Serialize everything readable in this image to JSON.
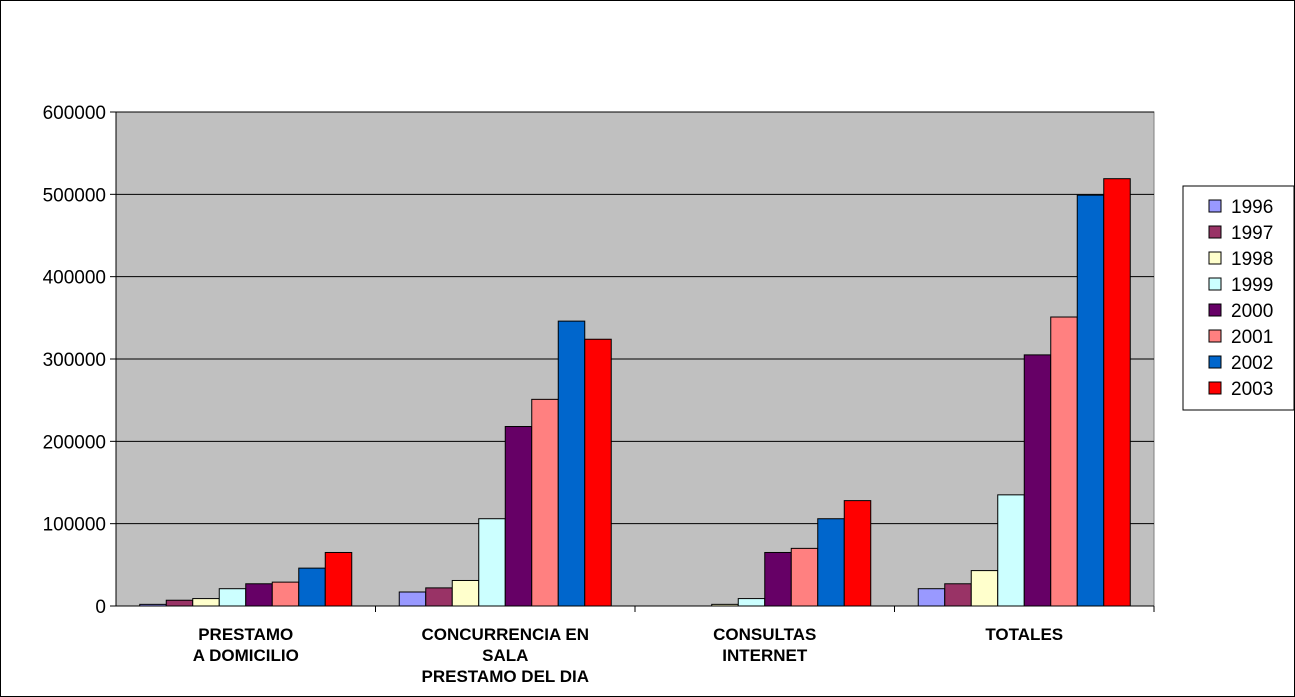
{
  "chart_data": {
    "type": "bar",
    "title": "",
    "xlabel": "",
    "ylabel": "",
    "ylim": [
      0,
      600000
    ],
    "yticks": [
      0,
      100000,
      200000,
      300000,
      400000,
      500000,
      600000
    ],
    "ytick_labels": [
      "0",
      "100000",
      "200000",
      "300000",
      "400000",
      "500000",
      "600000"
    ],
    "grid": true,
    "legend_position": "right",
    "plot_background": "#c0c0c0",
    "categories": [
      [
        "PRESTAMO",
        "A DOMICILIO"
      ],
      [
        "CONCURRENCIA EN",
        "SALA",
        "PRESTAMO DEL DIA"
      ],
      [
        "CONSULTAS",
        "INTERNET"
      ],
      [
        "TOTALES"
      ]
    ],
    "series": [
      {
        "name": "1996",
        "color": "#9999ff",
        "values": [
          2000,
          17000,
          0,
          21000
        ]
      },
      {
        "name": "1997",
        "color": "#993366",
        "values": [
          7000,
          22000,
          0,
          27000
        ]
      },
      {
        "name": "1998",
        "color": "#ffffcc",
        "values": [
          9000,
          31000,
          2000,
          43000
        ]
      },
      {
        "name": "1999",
        "color": "#ccffff",
        "values": [
          21000,
          106000,
          9000,
          135000
        ]
      },
      {
        "name": "2000",
        "color": "#660066",
        "values": [
          27000,
          218000,
          65000,
          305000
        ]
      },
      {
        "name": "2001",
        "color": "#ff8080",
        "values": [
          29000,
          251000,
          70000,
          351000
        ]
      },
      {
        "name": "2002",
        "color": "#0066cc",
        "values": [
          46000,
          346000,
          106000,
          499000
        ]
      },
      {
        "name": "2003",
        "color": "#ff0000",
        "values": [
          65000,
          324000,
          128000,
          519000
        ]
      }
    ]
  }
}
